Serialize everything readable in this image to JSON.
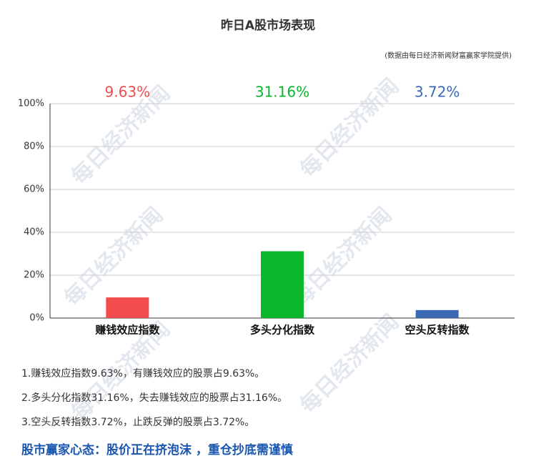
{
  "chart_data": {
    "type": "bar",
    "title": "昨日A股市场表现",
    "subtitle": "(数据由每日经济新闻财富赢家学院提供)",
    "categories": [
      "赚钱效应指数",
      "多头分化指数",
      "空头反转指数"
    ],
    "values": [
      9.63,
      31.16,
      3.72
    ],
    "value_labels": [
      "9.63%",
      "31.16%",
      "3.72%"
    ],
    "colors": [
      "#f34c4c",
      "#0bb62b",
      "#3b69b4"
    ],
    "ylim": [
      0,
      100
    ],
    "yticks": [
      {
        "value": 0,
        "label": "0%"
      },
      {
        "value": 20,
        "label": "20%"
      },
      {
        "value": 40,
        "label": "40%"
      },
      {
        "value": 60,
        "label": "60%"
      },
      {
        "value": 80,
        "label": "80%"
      },
      {
        "value": 100,
        "label": "100%"
      }
    ],
    "grid": true
  },
  "watermark": "每日经济新闻",
  "notes": [
    "1.赚钱效应指数9.63%，有赚钱效应的股票占9.63%。",
    "2.多头分化指数31.16%，失去赚钱效应的股票占31.16%。",
    "3.空头反转指数3.72%，止跌反弹的股票占3.72%。"
  ],
  "headline": "股市赢家心态：股价正在挤泡沫 ，重仓抄底需谨慎"
}
